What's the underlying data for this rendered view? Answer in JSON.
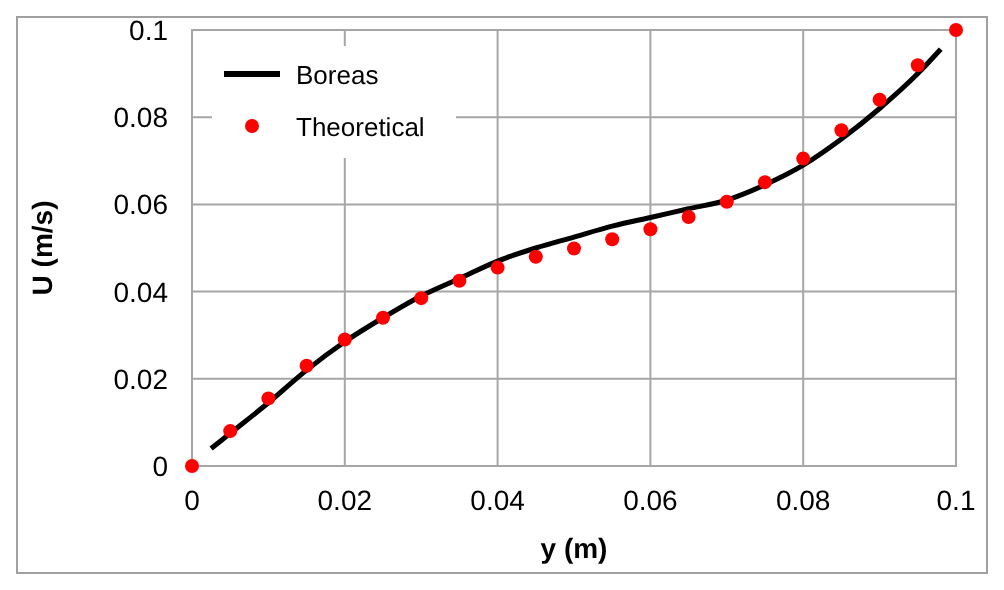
{
  "chart_data": {
    "type": "line",
    "xlabel": "y (m)",
    "ylabel": "U (m/s)",
    "xlim": [
      0,
      0.1
    ],
    "xticks": [
      0,
      0.02,
      0.04,
      0.06,
      0.08,
      0.1
    ],
    "ylim": [
      0,
      0.1
    ],
    "yticks": [
      0,
      0.02,
      0.04,
      0.06,
      0.08,
      0.1
    ],
    "grid": true,
    "legend": "top left",
    "series": [
      {
        "name": "Boreas",
        "color": "#000000",
        "marker": "none",
        "line_style": "solid",
        "x": [
          0.0025,
          0.005,
          0.01,
          0.015,
          0.02,
          0.025,
          0.03,
          0.035,
          0.04,
          0.045,
          0.05,
          0.055,
          0.06,
          0.065,
          0.07,
          0.075,
          0.08,
          0.085,
          0.09,
          0.095,
          0.098
        ],
        "values": [
          0.004,
          0.0075,
          0.0145,
          0.022,
          0.0285,
          0.034,
          0.039,
          0.043,
          0.047,
          0.05,
          0.0525,
          0.055,
          0.057,
          0.059,
          0.061,
          0.0645,
          0.069,
          0.075,
          0.082,
          0.09,
          0.0956
        ]
      },
      {
        "name": "Theoretical",
        "type": "scatter",
        "color": "#ff0000",
        "marker": "circle",
        "x": [
          0,
          0.005,
          0.01,
          0.015,
          0.02,
          0.025,
          0.03,
          0.035,
          0.04,
          0.045,
          0.05,
          0.055,
          0.06,
          0.065,
          0.07,
          0.075,
          0.08,
          0.085,
          0.09,
          0.095,
          0.1
        ],
        "values": [
          0,
          0.008,
          0.0155,
          0.023,
          0.029,
          0.034,
          0.0385,
          0.0425,
          0.0455,
          0.048,
          0.0499,
          0.052,
          0.0543,
          0.0571,
          0.0606,
          0.0651,
          0.0705,
          0.077,
          0.084,
          0.0919,
          0.1
        ]
      }
    ]
  }
}
